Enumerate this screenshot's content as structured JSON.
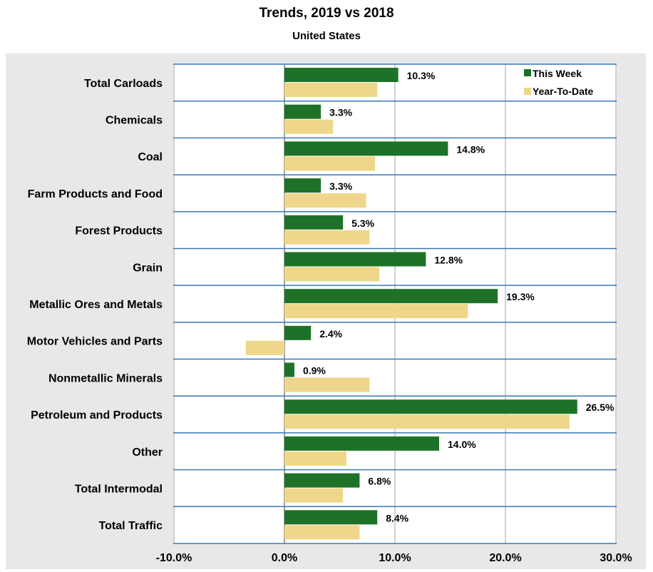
{
  "colors": {
    "this_week": "#1e7228",
    "year_to_date": "#f0d68a",
    "separator": "#3a78b8",
    "gridline": "#a0a0a0",
    "panel": "#e8e8e8"
  },
  "chart_data": {
    "type": "bar",
    "orientation": "horizontal",
    "title": "Trends, 2019 vs 2018",
    "subtitle": "United States",
    "xlim": [
      -10,
      30
    ],
    "ticks": [
      -10,
      0,
      10,
      20,
      30
    ],
    "tick_labels": [
      "-10.0%",
      "0.0%",
      "10.0%",
      "20.0%",
      "30.0%"
    ],
    "legend_position": "top-right",
    "categories": [
      "Total Carloads",
      "Chemicals",
      "Coal",
      "Farm Products and Food",
      "Forest Products",
      "Grain",
      "Metallic Ores and Metals",
      "Motor Vehicles and Parts",
      "Nonmetallic Minerals",
      "Petroleum and Products",
      "Other",
      "Total Intermodal",
      "Total Traffic"
    ],
    "series": [
      {
        "name": "This Week",
        "values": [
          10.3,
          3.3,
          14.8,
          3.3,
          5.3,
          12.8,
          19.3,
          2.4,
          0.9,
          26.5,
          14.0,
          6.8,
          8.4
        ],
        "labels": [
          "10.3%",
          "3.3%",
          "14.8%",
          "3.3%",
          "5.3%",
          "12.8%",
          "19.3%",
          "2.4%",
          "0.9%",
          "26.5%",
          "14.0%",
          "6.8%",
          "8.4%"
        ]
      },
      {
        "name": "Year-To-Date",
        "values": [
          8.4,
          4.4,
          8.2,
          7.4,
          7.7,
          8.6,
          16.6,
          -3.5,
          7.7,
          25.8,
          5.6,
          5.3,
          6.8
        ]
      }
    ]
  }
}
